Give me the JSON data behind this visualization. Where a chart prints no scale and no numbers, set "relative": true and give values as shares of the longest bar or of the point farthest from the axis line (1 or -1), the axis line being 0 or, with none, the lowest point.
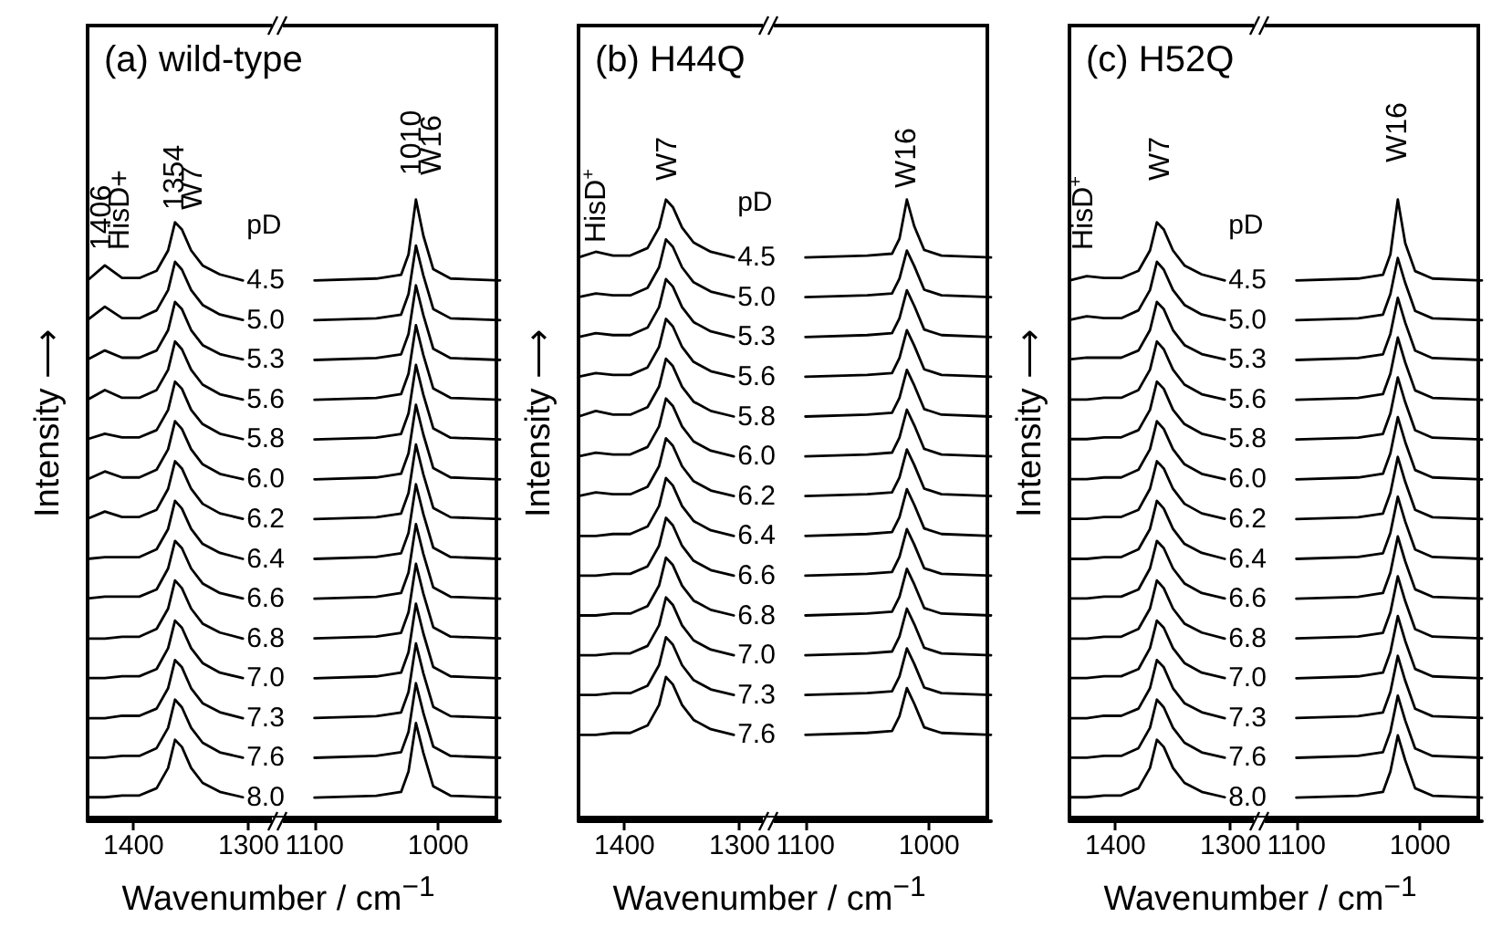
{
  "chart_data": [
    {
      "type": "line",
      "title": "(a) wild-type",
      "xlabel": "Wavenumber / cm$^{−1}$",
      "ylabel": "Intensity ⟶",
      "legend_title": "pD",
      "relative": true,
      "color": "#000000",
      "xlim": [
        1440,
        1275
      ],
      "xticks": [
        1400,
        1300
      ],
      "annotations": [
        "1406",
        "HisD+",
        "1354",
        "W7"
      ],
      "x": [
        1440,
        1425,
        1410,
        1395,
        1380,
        1370,
        1364,
        1358,
        1350,
        1340,
        1325,
        1305
      ],
      "series": [
        {
          "name": "4.5",
          "values": [
            0.903,
            0.928,
            0.907,
            0.907,
            0.919,
            0.953,
            1.0,
            0.988,
            0.953,
            0.928,
            0.913,
            0.903
          ]
        },
        {
          "name": "5.0",
          "values": [
            0.837,
            0.859,
            0.84,
            0.84,
            0.853,
            0.887,
            0.934,
            0.921,
            0.887,
            0.862,
            0.846,
            0.837
          ]
        },
        {
          "name": "5.3",
          "values": [
            0.771,
            0.786,
            0.774,
            0.774,
            0.786,
            0.82,
            0.867,
            0.855,
            0.82,
            0.795,
            0.78,
            0.771
          ]
        },
        {
          "name": "5.6",
          "values": [
            0.704,
            0.72,
            0.707,
            0.707,
            0.72,
            0.754,
            0.801,
            0.788,
            0.754,
            0.729,
            0.713,
            0.704
          ]
        },
        {
          "name": "5.8",
          "values": [
            0.638,
            0.647,
            0.641,
            0.641,
            0.653,
            0.687,
            0.734,
            0.722,
            0.687,
            0.663,
            0.647,
            0.638
          ]
        },
        {
          "name": "6.0",
          "values": [
            0.571,
            0.584,
            0.574,
            0.574,
            0.587,
            0.621,
            0.668,
            0.655,
            0.621,
            0.596,
            0.58,
            0.571
          ]
        },
        {
          "name": "6.2",
          "values": [
            0.505,
            0.517,
            0.508,
            0.508,
            0.52,
            0.555,
            0.601,
            0.589,
            0.555,
            0.53,
            0.514,
            0.505
          ]
        },
        {
          "name": "6.4",
          "values": [
            0.438,
            0.441,
            0.441,
            0.441,
            0.454,
            0.488,
            0.535,
            0.522,
            0.488,
            0.463,
            0.448,
            0.438
          ]
        },
        {
          "name": "6.6",
          "values": [
            0.372,
            0.375,
            0.375,
            0.375,
            0.387,
            0.422,
            0.468,
            0.456,
            0.422,
            0.397,
            0.381,
            0.372
          ]
        },
        {
          "name": "6.8",
          "values": [
            0.305,
            0.305,
            0.308,
            0.308,
            0.321,
            0.355,
            0.402,
            0.389,
            0.355,
            0.33,
            0.315,
            0.305
          ]
        },
        {
          "name": "7.0",
          "values": [
            0.239,
            0.239,
            0.242,
            0.242,
            0.254,
            0.289,
            0.335,
            0.323,
            0.289,
            0.264,
            0.248,
            0.239
          ]
        },
        {
          "name": "7.3",
          "values": [
            0.172,
            0.172,
            0.176,
            0.176,
            0.188,
            0.222,
            0.269,
            0.257,
            0.222,
            0.197,
            0.182,
            0.172
          ]
        },
        {
          "name": "7.6",
          "values": [
            0.106,
            0.106,
            0.109,
            0.109,
            0.122,
            0.156,
            0.203,
            0.19,
            0.156,
            0.131,
            0.115,
            0.106
          ]
        },
        {
          "name": "8.0",
          "values": [
            0.04,
            0.04,
            0.043,
            0.043,
            0.055,
            0.089,
            0.136,
            0.124,
            0.089,
            0.064,
            0.049,
            0.04
          ]
        }
      ]
    },
    {
      "type": "line",
      "relative": true,
      "color": "#000000",
      "xlim": [
        1130,
        950
      ],
      "xticks": [
        1100,
        1000
      ],
      "annotations": [
        "1010",
        "W16"
      ],
      "x": [
        1100,
        1050,
        1030,
        1024,
        1018,
        1012,
        1004,
        990,
        950
      ],
      "series": [
        {
          "values": [
            0.87,
            0.873,
            0.879,
            0.912,
            1.0,
            0.942,
            0.888,
            0.873,
            0.87
          ]
        },
        {
          "values": [
            0.806,
            0.809,
            0.815,
            0.848,
            0.926,
            0.878,
            0.824,
            0.809,
            0.806
          ]
        },
        {
          "values": [
            0.742,
            0.745,
            0.751,
            0.784,
            0.862,
            0.814,
            0.76,
            0.745,
            0.742
          ]
        },
        {
          "values": [
            0.678,
            0.681,
            0.687,
            0.72,
            0.798,
            0.75,
            0.696,
            0.681,
            0.678
          ]
        },
        {
          "values": [
            0.614,
            0.617,
            0.623,
            0.656,
            0.734,
            0.686,
            0.632,
            0.617,
            0.614
          ]
        },
        {
          "values": [
            0.55,
            0.553,
            0.559,
            0.592,
            0.67,
            0.622,
            0.568,
            0.553,
            0.55
          ]
        },
        {
          "values": [
            0.486,
            0.489,
            0.495,
            0.528,
            0.606,
            0.558,
            0.504,
            0.489,
            0.486
          ]
        },
        {
          "values": [
            0.422,
            0.425,
            0.431,
            0.464,
            0.542,
            0.494,
            0.44,
            0.425,
            0.422
          ]
        },
        {
          "values": [
            0.358,
            0.361,
            0.367,
            0.4,
            0.478,
            0.43,
            0.376,
            0.361,
            0.358
          ]
        },
        {
          "values": [
            0.294,
            0.297,
            0.303,
            0.336,
            0.414,
            0.366,
            0.312,
            0.297,
            0.294
          ]
        },
        {
          "values": [
            0.23,
            0.233,
            0.239,
            0.272,
            0.35,
            0.302,
            0.248,
            0.233,
            0.23
          ]
        },
        {
          "values": [
            0.166,
            0.169,
            0.175,
            0.208,
            0.286,
            0.238,
            0.184,
            0.169,
            0.166
          ]
        },
        {
          "values": [
            0.102,
            0.105,
            0.111,
            0.144,
            0.222,
            0.174,
            0.12,
            0.105,
            0.102
          ]
        },
        {
          "values": [
            0.038,
            0.041,
            0.047,
            0.08,
            0.158,
            0.11,
            0.056,
            0.041,
            0.038
          ]
        }
      ]
    },
    {
      "type": "line",
      "title": "(b) H44Q",
      "xlabel": "Wavenumber / cm$^{−1}$",
      "ylabel": "Intensity ⟶",
      "legend_title": "pD",
      "relative": true,
      "color": "#000000",
      "xlim": [
        1440,
        1275
      ],
      "xticks": [
        1400,
        1300
      ],
      "annotations": [
        "HisD$^{+}$",
        "W7"
      ],
      "x": [
        1440,
        1425,
        1410,
        1395,
        1380,
        1370,
        1364,
        1358,
        1350,
        1340,
        1325,
        1305
      ],
      "series": [
        {
          "name": "4.5",
          "values": [
            0.907,
            0.916,
            0.91,
            0.91,
            0.922,
            0.955,
            1.0,
            0.988,
            0.955,
            0.931,
            0.916,
            0.907
          ]
        },
        {
          "name": "5.0",
          "values": [
            0.843,
            0.849,
            0.846,
            0.846,
            0.858,
            0.891,
            0.936,
            0.924,
            0.891,
            0.867,
            0.852,
            0.843
          ]
        },
        {
          "name": "5.3",
          "values": [
            0.779,
            0.785,
            0.782,
            0.782,
            0.794,
            0.827,
            0.872,
            0.86,
            0.827,
            0.803,
            0.788,
            0.779
          ]
        },
        {
          "name": "5.6",
          "values": [
            0.715,
            0.721,
            0.718,
            0.718,
            0.73,
            0.763,
            0.808,
            0.796,
            0.763,
            0.739,
            0.724,
            0.715
          ]
        },
        {
          "name": "5.8",
          "values": [
            0.651,
            0.66,
            0.654,
            0.654,
            0.666,
            0.699,
            0.744,
            0.732,
            0.699,
            0.675,
            0.66,
            0.651
          ]
        },
        {
          "name": "6.0",
          "values": [
            0.587,
            0.593,
            0.59,
            0.59,
            0.602,
            0.635,
            0.68,
            0.668,
            0.635,
            0.611,
            0.596,
            0.587
          ]
        },
        {
          "name": "6.2",
          "values": [
            0.523,
            0.529,
            0.526,
            0.526,
            0.538,
            0.571,
            0.616,
            0.604,
            0.571,
            0.547,
            0.532,
            0.523
          ]
        },
        {
          "name": "6.4",
          "values": [
            0.459,
            0.459,
            0.462,
            0.462,
            0.474,
            0.507,
            0.552,
            0.54,
            0.507,
            0.483,
            0.468,
            0.459
          ]
        },
        {
          "name": "6.6",
          "values": [
            0.395,
            0.395,
            0.398,
            0.398,
            0.41,
            0.443,
            0.488,
            0.476,
            0.443,
            0.419,
            0.404,
            0.395
          ]
        },
        {
          "name": "6.8",
          "values": [
            0.331,
            0.331,
            0.334,
            0.334,
            0.346,
            0.379,
            0.424,
            0.412,
            0.379,
            0.355,
            0.34,
            0.331
          ]
        },
        {
          "name": "7.0",
          "values": [
            0.267,
            0.267,
            0.27,
            0.27,
            0.282,
            0.315,
            0.36,
            0.348,
            0.315,
            0.291,
            0.276,
            0.267
          ]
        },
        {
          "name": "7.3",
          "values": [
            0.203,
            0.203,
            0.206,
            0.206,
            0.218,
            0.251,
            0.296,
            0.284,
            0.251,
            0.227,
            0.212,
            0.203
          ]
        },
        {
          "name": "7.6",
          "values": [
            0.139,
            0.139,
            0.142,
            0.142,
            0.154,
            0.187,
            0.232,
            0.22,
            0.187,
            0.163,
            0.148,
            0.139
          ]
        }
      ]
    },
    {
      "type": "line",
      "relative": true,
      "color": "#000000",
      "xlim": [
        1130,
        950
      ],
      "xticks": [
        1100,
        1000
      ],
      "annotations": [
        "W16"
      ],
      "x": [
        1100,
        1050,
        1030,
        1024,
        1018,
        1012,
        1004,
        990,
        950
      ],
      "series": [
        {
          "values": [
            0.907,
            0.91,
            0.913,
            0.937,
            1.0,
            0.957,
            0.919,
            0.91,
            0.907
          ]
        },
        {
          "values": [
            0.843,
            0.846,
            0.849,
            0.873,
            0.918,
            0.893,
            0.855,
            0.846,
            0.843
          ]
        },
        {
          "values": [
            0.779,
            0.782,
            0.785,
            0.809,
            0.854,
            0.829,
            0.791,
            0.782,
            0.779
          ]
        },
        {
          "values": [
            0.715,
            0.718,
            0.721,
            0.745,
            0.79,
            0.765,
            0.727,
            0.718,
            0.715
          ]
        },
        {
          "values": [
            0.651,
            0.654,
            0.657,
            0.681,
            0.726,
            0.701,
            0.663,
            0.654,
            0.651
          ]
        },
        {
          "values": [
            0.587,
            0.59,
            0.593,
            0.617,
            0.662,
            0.637,
            0.599,
            0.59,
            0.587
          ]
        },
        {
          "values": [
            0.523,
            0.526,
            0.529,
            0.553,
            0.598,
            0.573,
            0.535,
            0.526,
            0.523
          ]
        },
        {
          "values": [
            0.459,
            0.462,
            0.465,
            0.489,
            0.534,
            0.509,
            0.471,
            0.462,
            0.459
          ]
        },
        {
          "values": [
            0.395,
            0.398,
            0.401,
            0.425,
            0.47,
            0.445,
            0.407,
            0.398,
            0.395
          ]
        },
        {
          "values": [
            0.331,
            0.334,
            0.337,
            0.361,
            0.406,
            0.381,
            0.343,
            0.334,
            0.331
          ]
        },
        {
          "values": [
            0.267,
            0.27,
            0.273,
            0.297,
            0.342,
            0.317,
            0.279,
            0.27,
            0.267
          ]
        },
        {
          "values": [
            0.203,
            0.206,
            0.209,
            0.233,
            0.278,
            0.253,
            0.215,
            0.206,
            0.203
          ]
        },
        {
          "values": [
            0.139,
            0.142,
            0.145,
            0.169,
            0.214,
            0.189,
            0.151,
            0.142,
            0.139
          ]
        }
      ]
    },
    {
      "type": "line",
      "title": "(c) H52Q",
      "xlabel": "Wavenumber / cm$^{−1}$",
      "ylabel": "Intensity ⟶",
      "legend_title": "pD",
      "relative": true,
      "color": "#000000",
      "xlim": [
        1440,
        1275
      ],
      "xticks": [
        1400,
        1300
      ],
      "annotations": [
        "HisD$^{+}$",
        "W7"
      ],
      "x": [
        1440,
        1425,
        1410,
        1395,
        1380,
        1370,
        1364,
        1358,
        1350,
        1340,
        1325,
        1305
      ],
      "series": [
        {
          "name": "4.5",
          "values": [
            0.903,
            0.91,
            0.907,
            0.907,
            0.919,
            0.953,
            1.0,
            0.988,
            0.953,
            0.928,
            0.913,
            0.903
          ]
        },
        {
          "name": "5.0",
          "values": [
            0.837,
            0.843,
            0.84,
            0.84,
            0.853,
            0.887,
            0.934,
            0.921,
            0.887,
            0.862,
            0.846,
            0.837
          ]
        },
        {
          "name": "5.3",
          "values": [
            0.771,
            0.774,
            0.774,
            0.774,
            0.786,
            0.82,
            0.867,
            0.855,
            0.82,
            0.795,
            0.78,
            0.771
          ]
        },
        {
          "name": "5.6",
          "values": [
            0.704,
            0.704,
            0.707,
            0.707,
            0.72,
            0.754,
            0.801,
            0.788,
            0.754,
            0.729,
            0.713,
            0.704
          ]
        },
        {
          "name": "5.8",
          "values": [
            0.638,
            0.638,
            0.641,
            0.641,
            0.653,
            0.687,
            0.734,
            0.722,
            0.687,
            0.663,
            0.647,
            0.638
          ]
        },
        {
          "name": "6.0",
          "values": [
            0.571,
            0.571,
            0.574,
            0.574,
            0.587,
            0.621,
            0.668,
            0.655,
            0.621,
            0.596,
            0.58,
            0.571
          ]
        },
        {
          "name": "6.2",
          "values": [
            0.505,
            0.505,
            0.508,
            0.508,
            0.52,
            0.555,
            0.601,
            0.589,
            0.555,
            0.53,
            0.514,
            0.505
          ]
        },
        {
          "name": "6.4",
          "values": [
            0.438,
            0.438,
            0.441,
            0.441,
            0.454,
            0.488,
            0.535,
            0.522,
            0.488,
            0.463,
            0.448,
            0.438
          ]
        },
        {
          "name": "6.6",
          "values": [
            0.372,
            0.372,
            0.375,
            0.375,
            0.387,
            0.422,
            0.468,
            0.456,
            0.422,
            0.397,
            0.381,
            0.372
          ]
        },
        {
          "name": "6.8",
          "values": [
            0.305,
            0.305,
            0.308,
            0.308,
            0.321,
            0.355,
            0.402,
            0.389,
            0.355,
            0.33,
            0.315,
            0.305
          ]
        },
        {
          "name": "7.0",
          "values": [
            0.239,
            0.239,
            0.242,
            0.242,
            0.254,
            0.289,
            0.335,
            0.323,
            0.289,
            0.264,
            0.248,
            0.239
          ]
        },
        {
          "name": "7.3",
          "values": [
            0.172,
            0.172,
            0.176,
            0.176,
            0.188,
            0.222,
            0.269,
            0.257,
            0.222,
            0.197,
            0.182,
            0.172
          ]
        },
        {
          "name": "7.6",
          "values": [
            0.106,
            0.106,
            0.109,
            0.109,
            0.122,
            0.156,
            0.203,
            0.19,
            0.156,
            0.131,
            0.115,
            0.106
          ]
        },
        {
          "name": "8.0",
          "values": [
            0.04,
            0.04,
            0.043,
            0.043,
            0.055,
            0.089,
            0.136,
            0.124,
            0.089,
            0.064,
            0.049,
            0.04
          ]
        }
      ]
    },
    {
      "type": "line",
      "relative": true,
      "color": "#000000",
      "xlim": [
        1130,
        950
      ],
      "xticks": [
        1100,
        1000
      ],
      "annotations": [
        "W16"
      ],
      "x": [
        1100,
        1050,
        1030,
        1024,
        1018,
        1012,
        1004,
        990,
        950
      ],
      "series": [
        {
          "values": [
            0.87,
            0.873,
            0.879,
            0.912,
            1.0,
            0.93,
            0.885,
            0.873,
            0.87
          ]
        },
        {
          "values": [
            0.806,
            0.809,
            0.815,
            0.848,
            0.906,
            0.866,
            0.821,
            0.809,
            0.806
          ]
        },
        {
          "values": [
            0.742,
            0.745,
            0.751,
            0.784,
            0.842,
            0.802,
            0.757,
            0.745,
            0.742
          ]
        },
        {
          "values": [
            0.678,
            0.681,
            0.687,
            0.72,
            0.778,
            0.738,
            0.693,
            0.681,
            0.678
          ]
        },
        {
          "values": [
            0.614,
            0.617,
            0.623,
            0.656,
            0.714,
            0.674,
            0.629,
            0.617,
            0.614
          ]
        },
        {
          "values": [
            0.55,
            0.553,
            0.559,
            0.592,
            0.65,
            0.61,
            0.565,
            0.553,
            0.55
          ]
        },
        {
          "values": [
            0.486,
            0.489,
            0.495,
            0.528,
            0.586,
            0.546,
            0.501,
            0.489,
            0.486
          ]
        },
        {
          "values": [
            0.422,
            0.425,
            0.431,
            0.464,
            0.522,
            0.482,
            0.437,
            0.425,
            0.422
          ]
        },
        {
          "values": [
            0.358,
            0.361,
            0.367,
            0.4,
            0.458,
            0.418,
            0.373,
            0.361,
            0.358
          ]
        },
        {
          "values": [
            0.294,
            0.297,
            0.303,
            0.336,
            0.394,
            0.354,
            0.309,
            0.297,
            0.294
          ]
        },
        {
          "values": [
            0.23,
            0.233,
            0.239,
            0.272,
            0.33,
            0.29,
            0.245,
            0.233,
            0.23
          ]
        },
        {
          "values": [
            0.166,
            0.169,
            0.175,
            0.208,
            0.266,
            0.226,
            0.181,
            0.169,
            0.166
          ]
        },
        {
          "values": [
            0.102,
            0.105,
            0.111,
            0.144,
            0.202,
            0.162,
            0.117,
            0.105,
            0.102
          ]
        },
        {
          "values": [
            0.038,
            0.041,
            0.047,
            0.08,
            0.138,
            0.098,
            0.053,
            0.041,
            0.038
          ]
        }
      ]
    }
  ]
}
